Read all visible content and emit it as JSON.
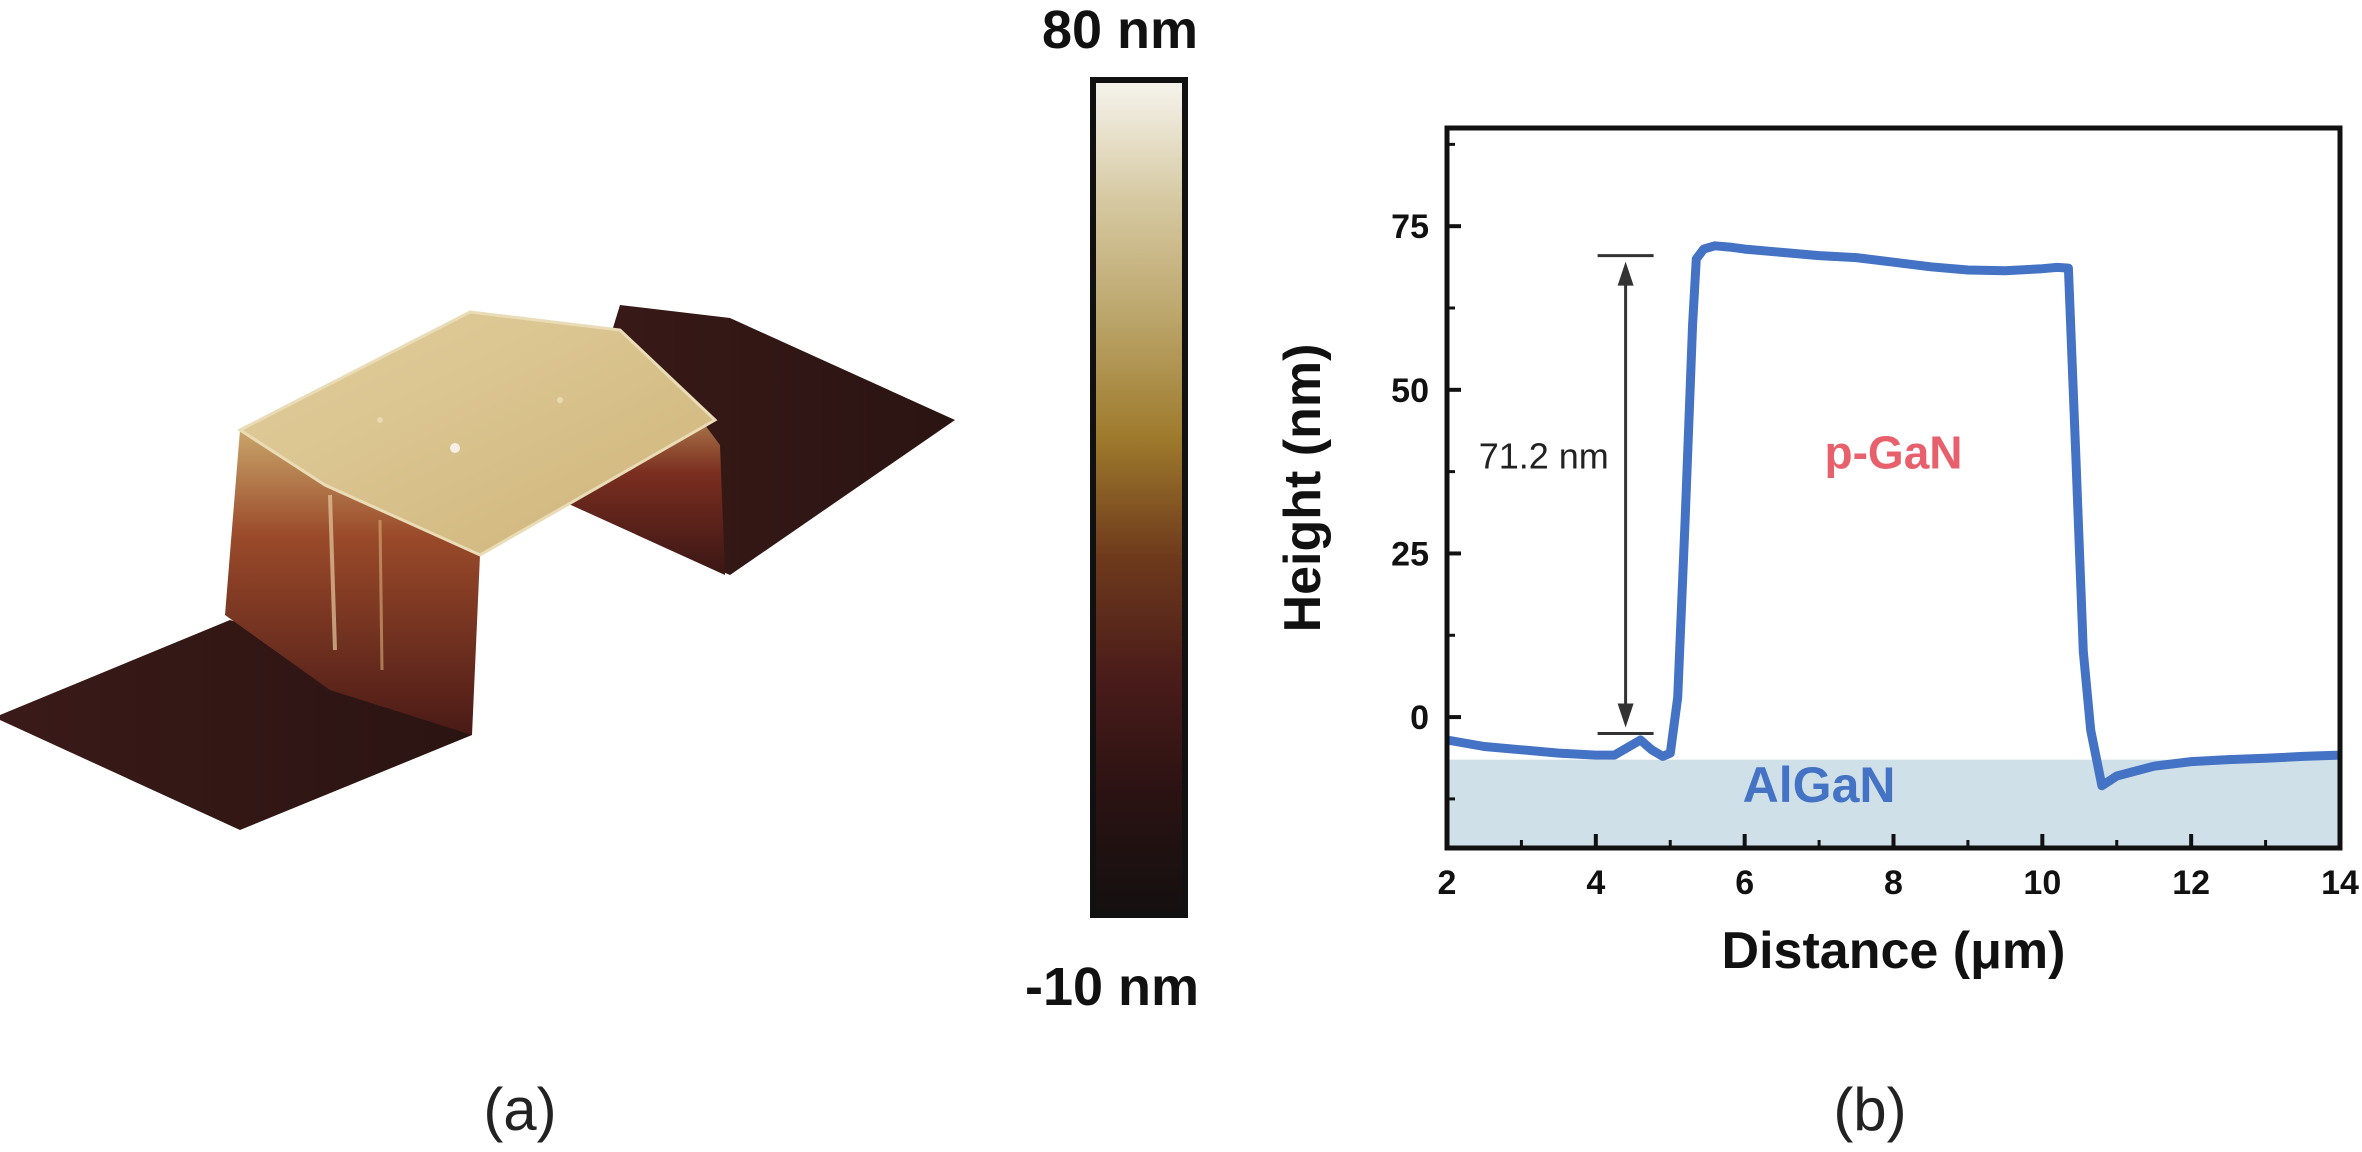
{
  "colorbar": {
    "max_label": "80 nm",
    "min_label": "-10 nm",
    "max_value": 80,
    "min_value": -10,
    "stops": [
      "#141010",
      "#2a1212",
      "#4a1c1a",
      "#6e3a1c",
      "#9e7a2c",
      "#bba56a",
      "#d6c9a2",
      "#f6f4ee"
    ]
  },
  "afm_image": {
    "mesa_label": "",
    "top_color": "#d9c28e",
    "wall_color": "#7a2a1c",
    "base_color": "#2e1614"
  },
  "panel_labels": {
    "a": "(a)",
    "b": "(b)"
  },
  "chart_data": {
    "type": "line",
    "xlabel": "Distance (μm)",
    "ylabel": "Height (nm)",
    "xlim": [
      2,
      14
    ],
    "ylim": [
      -20,
      90
    ],
    "xticks": [
      2,
      4,
      6,
      8,
      10,
      12,
      14
    ],
    "yticks": [
      0,
      25,
      50,
      75
    ],
    "grid": false,
    "line_color": "#4472c4",
    "series": [
      {
        "x": [
          2.0,
          2.5,
          3.0,
          3.5,
          4.0,
          4.25,
          4.45,
          4.6,
          4.75,
          4.9,
          5.0,
          5.1,
          5.2,
          5.3,
          5.35,
          5.45,
          5.6,
          5.8,
          6.0,
          6.5,
          7.0,
          7.5,
          8.0,
          8.5,
          9.0,
          9.5,
          10.0,
          10.2,
          10.35,
          10.45,
          10.55,
          10.65,
          10.8,
          11.0,
          11.5,
          12.0,
          12.5,
          13.0,
          13.5,
          14.0
        ],
        "y": [
          -3.5,
          -4.5,
          -5.0,
          -5.5,
          -5.8,
          -5.8,
          -4.5,
          -3.5,
          -5.0,
          -6.0,
          -5.5,
          3.0,
          30.0,
          60.0,
          70.0,
          71.5,
          72.0,
          71.8,
          71.5,
          71.0,
          70.5,
          70.2,
          69.5,
          68.8,
          68.3,
          68.2,
          68.5,
          68.7,
          68.6,
          40.0,
          10.0,
          -2.0,
          -10.5,
          -9.0,
          -7.5,
          -6.8,
          -6.5,
          -6.3,
          -6.0,
          -5.8
        ]
      }
    ],
    "annotations": {
      "step_label": "71.2 nm",
      "upper_label": "p-GaN",
      "lower_label": "AlGaN",
      "upper_label_color": "#e8606b",
      "lower_label_color": "#4472c4",
      "band_color": "#cfe0e8",
      "band_ylim": [
        -20,
        -6.5
      ],
      "arrow_from": -2.5,
      "arrow_to": 70.5,
      "arrow_x": 4.4,
      "upper_label_pos": [
        8.0,
        38
      ],
      "lower_label_pos": [
        7.0,
        -13
      ],
      "step_label_pos": [
        3.3,
        38
      ]
    }
  }
}
